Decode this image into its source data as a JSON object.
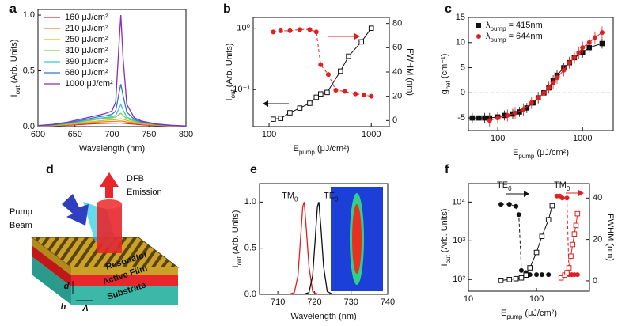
{
  "chart_data": [
    {
      "type": "line",
      "label": "a",
      "xlabel": "Wavelength (nm)",
      "ylabel": [
        "I",
        "out",
        " (Arb. Units)"
      ],
      "xlim": [
        600,
        800
      ],
      "xticks": [
        600,
        650,
        700,
        750,
        800
      ],
      "ylim": [
        0,
        1.05
      ],
      "yticks": [
        {
          "value": 0,
          "label": "0.0"
        },
        {
          "value": 0.5,
          "label": "0.5"
        },
        {
          "value": 1,
          "label": "1.0"
        }
      ],
      "legend": "upper-left",
      "x": [
        600,
        620,
        640,
        660,
        680,
        690,
        700,
        705,
        710,
        712,
        715,
        720,
        730,
        740,
        760,
        780,
        800
      ],
      "series": [
        {
          "name": "160 μJ/cm²",
          "color": "#e8262b",
          "line": "solid",
          "values": [
            0.003,
            0.006,
            0.012,
            0.02,
            0.028,
            0.03,
            0.031,
            0.031,
            0.032,
            0.032,
            0.031,
            0.028,
            0.022,
            0.016,
            0.008,
            0.004,
            0.002
          ]
        },
        {
          "name": "210 μJ/cm²",
          "color": "#f5822a",
          "line": "solid",
          "values": [
            0.004,
            0.008,
            0.016,
            0.028,
            0.04,
            0.044,
            0.046,
            0.047,
            0.05,
            0.05,
            0.048,
            0.042,
            0.032,
            0.022,
            0.011,
            0.005,
            0.003
          ]
        },
        {
          "name": "250 μJ/cm²",
          "color": "#c9c41e",
          "line": "solid",
          "values": [
            0.005,
            0.01,
            0.02,
            0.035,
            0.05,
            0.056,
            0.06,
            0.062,
            0.068,
            0.07,
            0.066,
            0.055,
            0.04,
            0.028,
            0.014,
            0.007,
            0.003
          ]
        },
        {
          "name": "310 μJ/cm²",
          "color": "#7dd04a",
          "line": "solid",
          "values": [
            0.006,
            0.012,
            0.025,
            0.045,
            0.065,
            0.072,
            0.078,
            0.085,
            0.11,
            0.12,
            0.1,
            0.07,
            0.05,
            0.035,
            0.017,
            0.008,
            0.004
          ]
        },
        {
          "name": "390 μJ/cm²",
          "color": "#3cc6c4",
          "line": "solid",
          "values": [
            0.007,
            0.014,
            0.028,
            0.05,
            0.072,
            0.08,
            0.088,
            0.1,
            0.17,
            0.2,
            0.15,
            0.085,
            0.055,
            0.038,
            0.018,
            0.009,
            0.004
          ]
        },
        {
          "name": "680 μJ/cm²",
          "color": "#2b7bd3",
          "line": "solid",
          "values": [
            0.008,
            0.016,
            0.032,
            0.058,
            0.085,
            0.095,
            0.11,
            0.14,
            0.32,
            0.38,
            0.28,
            0.13,
            0.065,
            0.042,
            0.02,
            0.01,
            0.005
          ]
        },
        {
          "name": "1000 μJ/cm²",
          "color": "#8d2cb6",
          "line": "solid",
          "values": [
            0.01,
            0.02,
            0.04,
            0.07,
            0.1,
            0.115,
            0.14,
            0.22,
            0.8,
            1.0,
            0.62,
            0.2,
            0.08,
            0.05,
            0.024,
            0.012,
            0.006
          ]
        }
      ]
    },
    {
      "type": "scatter",
      "label": "b",
      "xlabel": [
        "E",
        "pump",
        " (μJ/cm²)"
      ],
      "ylabel": [
        "I",
        "out",
        " (Arb. Units)"
      ],
      "y2label": "FWHM (nm)",
      "xscale": "log",
      "yscale": "log",
      "xlim": [
        70,
        1500
      ],
      "xticks": [
        100,
        1000
      ],
      "ylim": [
        0.025,
        1.5
      ],
      "yticks": [
        {
          "value": 0.1,
          "label": "10⁻¹"
        },
        {
          "value": 1,
          "label": "10⁰"
        }
      ],
      "y2lim": [
        -5,
        85
      ],
      "y2ticks": [
        0,
        20,
        40,
        60,
        80
      ],
      "series": [
        {
          "color": "#111111",
          "marker": "square-open",
          "line": "solid",
          "x": [
            110,
            130,
            160,
            200,
            250,
            290,
            320,
            370,
            500,
            600,
            800,
            1000
          ],
          "values": [
            0.033,
            0.034,
            0.042,
            0.05,
            0.06,
            0.075,
            0.085,
            0.09,
            0.2,
            0.35,
            0.6,
            1.0
          ]
        },
        {
          "color": "#e02020",
          "marker": "circle",
          "line": "dashed",
          "axis": "y2",
          "x": [
            110,
            130,
            160,
            200,
            250,
            290,
            320,
            380,
            450,
            550,
            700,
            850,
            1000
          ],
          "values": [
            73,
            74,
            74,
            75,
            75,
            73,
            46,
            38,
            25,
            24,
            22,
            21,
            20
          ]
        }
      ]
    },
    {
      "type": "scatter",
      "label": "c",
      "xlabel": [
        "E",
        "pump",
        " (μJ/cm²)"
      ],
      "ylabel": [
        "g",
        "net",
        " (cm⁻¹)"
      ],
      "xscale": "log",
      "xlim": [
        45,
        2300
      ],
      "xticks": [
        100,
        1000
      ],
      "ylim": [
        -7.5,
        15
      ],
      "yticks": [
        -5,
        0,
        5,
        10,
        15
      ],
      "hline": 0,
      "legend": "upper-left",
      "series": [
        {
          "name": [
            "λ",
            "pump",
            " = 415nm"
          ],
          "color": "#111111",
          "marker": "square",
          "line": "solid",
          "x": [
            50,
            60,
            70,
            80,
            100,
            120,
            150,
            180,
            220,
            260,
            300,
            350,
            400,
            450,
            500,
            600,
            700,
            800,
            1000,
            1200,
            1700
          ],
          "values": [
            -5,
            -5,
            -5,
            -5,
            -4.8,
            -4.5,
            -4.2,
            -3.8,
            -3,
            -2,
            -1,
            0,
            1,
            2.5,
            3.5,
            5,
            6,
            7,
            8,
            9,
            9.8
          ],
          "errors": [
            1,
            1,
            1,
            1,
            1,
            1,
            1,
            1,
            1,
            1,
            1,
            1,
            1,
            1,
            1,
            1,
            1,
            1,
            1,
            1,
            1
          ]
        },
        {
          "name": [
            "λ",
            "pump",
            " = 644nm"
          ],
          "color": "#e02020",
          "marker": "circle",
          "line": "solid",
          "x": [
            80,
            100,
            130,
            160,
            200,
            250,
            300,
            350,
            400,
            450,
            500,
            600,
            700,
            800,
            900,
            1000,
            1200,
            1400,
            1700
          ],
          "values": [
            -5.5,
            -5,
            -4.5,
            -4,
            -3.3,
            -2,
            -1,
            0,
            1,
            2,
            3,
            4.5,
            6,
            7,
            8,
            9,
            10,
            11,
            12
          ],
          "errors": [
            1.2,
            1.2,
            1.2,
            1.2,
            1.2,
            1.2,
            1.2,
            1.2,
            1.2,
            1.2,
            1.2,
            1.2,
            1.2,
            1.2,
            1.2,
            1.2,
            1.2,
            1.2,
            1.2
          ]
        }
      ]
    },
    {
      "type": "line",
      "label": "e",
      "xlabel": "Wavelength (nm)",
      "ylabel": [
        "I",
        "out",
        " (Arb. Units)"
      ],
      "xlim": [
        705,
        740
      ],
      "xticks": [
        710,
        720,
        730,
        740
      ],
      "ylim": [
        0,
        1.2
      ],
      "yticks": [
        {
          "value": 0,
          "label": "0.0"
        },
        {
          "value": 0.5,
          "label": "0.5"
        },
        {
          "value": 1,
          "label": "1.0"
        }
      ],
      "legend": "peak",
      "series": [
        {
          "name": [
            "TM",
            "0"
          ],
          "color": "#e02020",
          "line": "solid",
          "x": [
            713,
            714.5,
            715.5,
            716.2,
            716.8,
            717.2,
            717.8,
            718.5,
            719.5,
            721
          ],
          "values": [
            0,
            0.02,
            0.2,
            0.6,
            0.95,
            1.0,
            0.7,
            0.3,
            0.03,
            0
          ]
        },
        {
          "name": [
            "TE",
            "0"
          ],
          "color": "#111111",
          "line": "solid",
          "x": [
            717,
            718.5,
            719.5,
            720.2,
            720.8,
            721.2,
            721.8,
            722.5,
            723.5,
            725
          ],
          "values": [
            0,
            0.02,
            0.2,
            0.6,
            0.95,
            1.0,
            0.7,
            0.3,
            0.03,
            0
          ]
        }
      ]
    },
    {
      "type": "scatter",
      "label": "f",
      "xlabel": [
        "E",
        "pump",
        " (μJ/cm²)"
      ],
      "ylabel": [
        "I",
        "out",
        " (Arb. Units)"
      ],
      "y2label": "FWHM (nm)",
      "xscale": "log",
      "yscale": "log",
      "xlim": [
        10,
        600
      ],
      "xticks": [
        10,
        100
      ],
      "ylim": [
        50,
        30000
      ],
      "yticks": [
        {
          "value": 100,
          "label": "10²"
        },
        {
          "value": 1000,
          "label": "10³"
        },
        {
          "value": 10000,
          "label": "10⁴"
        }
      ],
      "y2lim": [
        -5,
        47
      ],
      "y2ticks": [
        0,
        20,
        40
      ],
      "annotations": [
        [
          "TE",
          "0"
        ],
        [
          "TM",
          "0"
        ]
      ],
      "series": [
        {
          "color": "#111111",
          "marker": "circle",
          "line": "dashed",
          "axis": "y2",
          "x": [
            30,
            40,
            50,
            55,
            60,
            70,
            80,
            100,
            120,
            150
          ],
          "values": [
            37,
            37,
            36,
            32,
            5,
            4,
            3,
            3,
            3,
            3
          ]
        },
        {
          "color": "#111111",
          "marker": "square-open",
          "line": "solid",
          "x": [
            30,
            40,
            50,
            60,
            70,
            80,
            100,
            120,
            150,
            170
          ],
          "values": [
            95,
            100,
            105,
            110,
            130,
            200,
            500,
            1300,
            3500,
            8000
          ]
        },
        {
          "color": "#e02020",
          "marker": "circle",
          "line": "dashed",
          "axis": "y2",
          "x": [
            200,
            220,
            240,
            280,
            300,
            330,
            360,
            400
          ],
          "values": [
            41,
            41,
            40,
            40,
            3,
            3,
            3,
            3
          ]
        },
        {
          "color": "#e02020",
          "marker": "square-open",
          "line": "solid",
          "x": [
            230,
            260,
            280,
            300,
            320,
            340,
            360,
            380,
            400
          ],
          "values": [
            110,
            130,
            150,
            200,
            400,
            800,
            1500,
            2500,
            5000
          ]
        }
      ]
    }
  ],
  "diagram": {
    "label": "d",
    "emission": [
      "DFB",
      "Emission"
    ],
    "pump": [
      "Pump",
      "Beam"
    ],
    "layers": [
      "Resonator",
      "Active Film",
      "Substrate"
    ],
    "dims": [
      "d",
      "h",
      "Λ"
    ]
  }
}
